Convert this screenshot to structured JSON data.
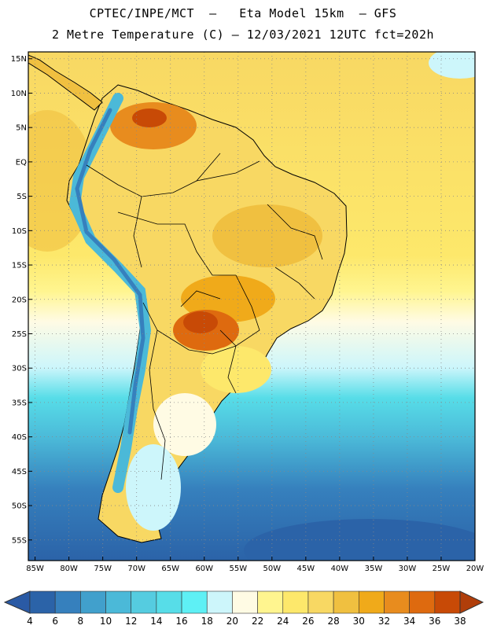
{
  "header": {
    "line1": "CPTEC/INPE/MCT  –   Eta Model 15km  – GFS",
    "line2": "2 Metre Temperature (C) – 12/03/2021 12UTC fct=202h"
  },
  "map": {
    "lat_labels": [
      "15N",
      "10N",
      "5N",
      "EQ",
      "5S",
      "10S",
      "15S",
      "20S",
      "25S",
      "30S",
      "35S",
      "40S",
      "45S",
      "50S",
      "55S"
    ],
    "lon_labels": [
      "85W",
      "80W",
      "75W",
      "70W",
      "65W",
      "60W",
      "55W",
      "50W",
      "45W",
      "40W",
      "35W",
      "30W",
      "25W",
      "20W"
    ],
    "lat_values": [
      15,
      10,
      5,
      0,
      -5,
      -10,
      -15,
      -20,
      -25,
      -30,
      -35,
      -40,
      -45,
      -50,
      -55
    ],
    "lon_values": [
      -85,
      -80,
      -75,
      -70,
      -65,
      -60,
      -55,
      -50,
      -45,
      -40,
      -35,
      -30,
      -25,
      -20
    ],
    "extent": {
      "lon_min": -86,
      "lon_max": -20,
      "lat_min": -58,
      "lat_max": 16
    }
  },
  "colorbar": {
    "unit": "C",
    "labels": [
      "4",
      "6",
      "8",
      "10",
      "12",
      "14",
      "16",
      "18",
      "20",
      "22",
      "24",
      "26",
      "28",
      "30",
      "32",
      "34",
      "36",
      "38"
    ],
    "colors": [
      "#2b63a8",
      "#3680bd",
      "#41a0cc",
      "#4bb9d8",
      "#55cce0",
      "#57dde8",
      "#5ef0f5",
      "#cdf6fb",
      "#fffbe4",
      "#fff58f",
      "#fde86b",
      "#f8d863",
      "#f0c040",
      "#f0aa1a",
      "#e88c1e",
      "#de6a0f",
      "#c84a06"
    ],
    "low_color": "#2a5aa5",
    "high_color": "#b03e0a"
  }
}
